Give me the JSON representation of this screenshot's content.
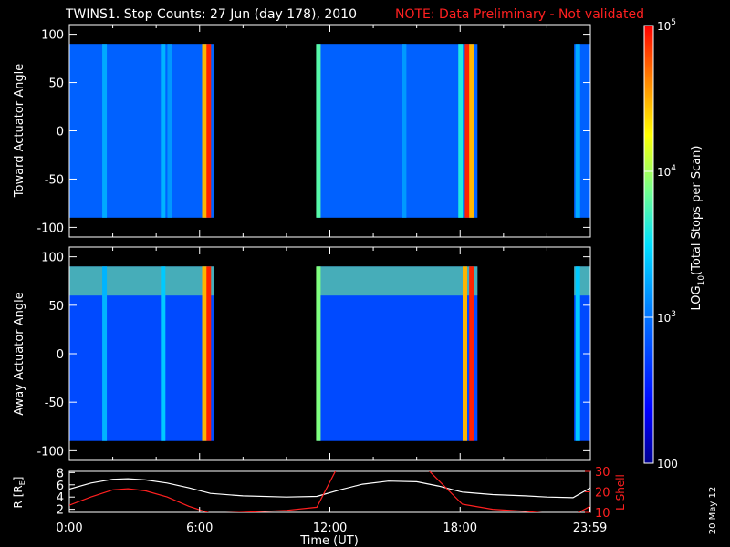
{
  "header": {
    "title": "TWINS1. Stop Counts: 27 Jun (day 178), 2010",
    "note": "NOTE: Data Preliminary - Not validated"
  },
  "date_stamp": "20 May 12",
  "colors": {
    "background": "#000000",
    "axes": "#ffffff",
    "note": "#ff2020",
    "r_line": "#ffffff",
    "lshell_line": "#ff2020"
  },
  "chart_data": [
    {
      "type": "heatmap",
      "title": "",
      "ylabel": "Toward Actuator Angle",
      "ylim": [
        -110,
        110
      ],
      "yticks": [
        100,
        50,
        0,
        -50,
        -100
      ],
      "xlim": [
        0,
        24
      ],
      "data_extent_angle": [
        -90,
        90
      ],
      "data_intervals_hours": [
        [
          0,
          6.65
        ],
        [
          11.4,
          18.8
        ],
        [
          23.25,
          24
        ]
      ],
      "colorscale": "log10",
      "dominant_value": 800,
      "bright_columns_hours": [
        {
          "t": 1.6,
          "value": 1800
        },
        {
          "t": 4.3,
          "value": 2000
        },
        {
          "t": 4.6,
          "value": 1500
        },
        {
          "t": 6.2,
          "value": 30000
        },
        {
          "t": 6.4,
          "value": 80000
        },
        {
          "t": 11.45,
          "value": 6000
        },
        {
          "t": 15.4,
          "value": 1500
        },
        {
          "t": 18.0,
          "value": 4000
        },
        {
          "t": 18.3,
          "value": 80000
        },
        {
          "t": 18.5,
          "value": 30000
        },
        {
          "t": 23.4,
          "value": 1800
        }
      ]
    },
    {
      "type": "heatmap",
      "title": "",
      "ylabel": "Away Actuator Angle",
      "ylim": [
        -110,
        110
      ],
      "yticks": [
        100,
        50,
        0,
        -50,
        -100
      ],
      "xlim": [
        0,
        24
      ],
      "data_extent_angle": [
        -90,
        90
      ],
      "data_intervals_hours": [
        [
          0,
          6.65
        ],
        [
          11.4,
          18.8
        ],
        [
          23.25,
          24
        ]
      ],
      "colorscale": "log10",
      "dominant_value": 600,
      "high_band": {
        "angle_range": [
          60,
          90
        ],
        "value": 8000
      },
      "bright_columns_hours": [
        {
          "t": 1.6,
          "value": 2000
        },
        {
          "t": 4.3,
          "value": 2500
        },
        {
          "t": 6.2,
          "value": 30000
        },
        {
          "t": 6.4,
          "value": 80000
        },
        {
          "t": 11.45,
          "value": 8000
        },
        {
          "t": 18.2,
          "value": 30000
        },
        {
          "t": 18.5,
          "value": 80000
        },
        {
          "t": 23.4,
          "value": 2500
        }
      ]
    },
    {
      "type": "line",
      "title": "",
      "xlabel": "Time (UT)",
      "ylabel": "R [R",
      "ylabel_sub": "E",
      "ylabel_end": "]",
      "ylabel_right": "L Shell",
      "xlim": [
        0,
        24
      ],
      "xticks": [
        "0:00",
        "6:00",
        "12:00",
        "18:00",
        "23:59"
      ],
      "xtick_hours": [
        0,
        6,
        12,
        18,
        23.98
      ],
      "ylim_left": [
        1.5,
        8.2
      ],
      "yticks_left": [
        8,
        6,
        4,
        2
      ],
      "ylim_right": [
        10,
        30
      ],
      "yticks_right": [
        30,
        20,
        10
      ],
      "series": [
        {
          "axis": "left",
          "color": "#ffffff",
          "x": [
            0,
            1,
            2,
            2.7,
            3.5,
            4.5,
            5.5,
            6.5,
            8,
            10,
            11.4,
            12.5,
            13.5,
            14.7,
            16,
            17,
            18.1,
            19.5,
            21,
            22,
            23.2,
            24
          ],
          "y": [
            5.3,
            6.3,
            6.9,
            7.0,
            6.8,
            6.3,
            5.5,
            4.6,
            4.2,
            4.0,
            4.1,
            5.2,
            6.1,
            6.6,
            6.5,
            5.8,
            4.8,
            4.4,
            4.2,
            4.0,
            3.9,
            5.5
          ]
        },
        {
          "axis": "right",
          "color": "#ff2020",
          "x": [
            0,
            1,
            2,
            2.7,
            3.5,
            4.5,
            5.5,
            6.5,
            8,
            10,
            11.4,
            12.3,
            16.5,
            18.1,
            19.5,
            21,
            22,
            23.2,
            24
          ],
          "y": [
            13.5,
            17.5,
            21,
            21.5,
            20.5,
            17.5,
            13,
            9.5,
            10,
            11,
            12.5,
            31,
            31,
            14,
            11.5,
            10.5,
            9.5,
            8.5,
            13
          ]
        }
      ]
    }
  ],
  "colorbar": {
    "label_pre": "LOG",
    "label_sub": "10",
    "label_post": "(Total Stops per Scan)",
    "range": [
      100,
      100000
    ],
    "ticks": [
      {
        "value": 100000,
        "label": "10",
        "exp": "5"
      },
      {
        "value": 10000,
        "label": "10",
        "exp": "4"
      },
      {
        "value": 1000,
        "label": "10",
        "exp": "3"
      },
      {
        "value": 100,
        "label": "100",
        "exp": ""
      }
    ]
  }
}
